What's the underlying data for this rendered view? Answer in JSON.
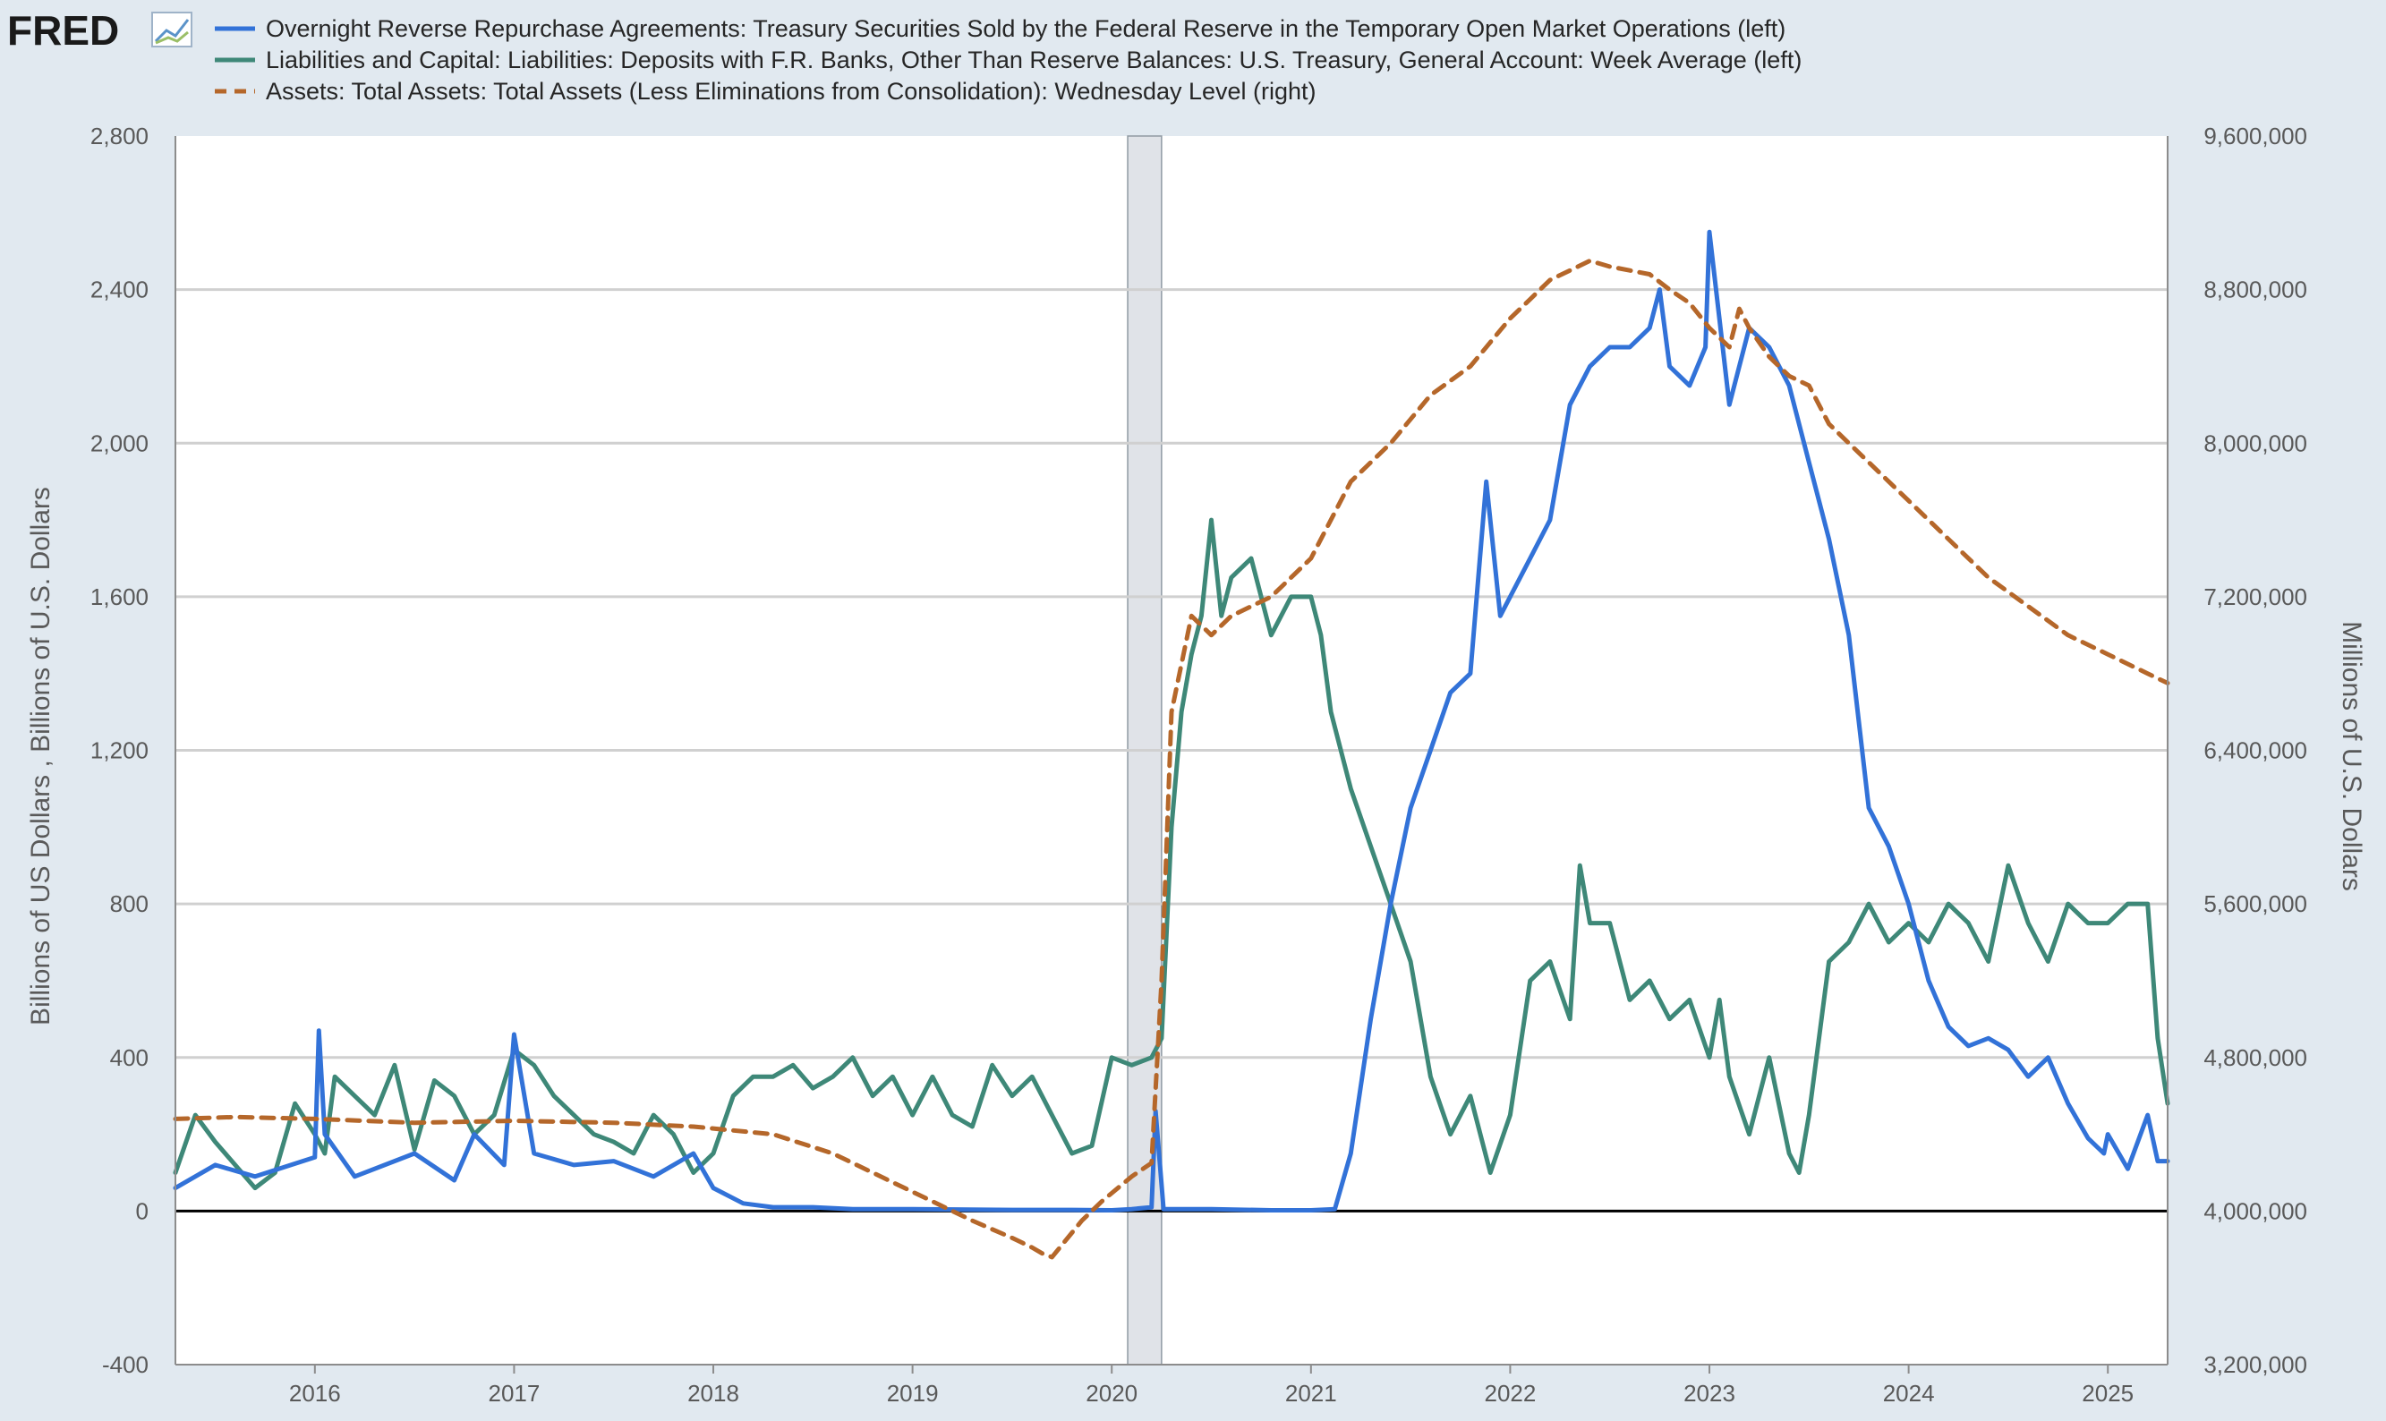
{
  "header": {
    "logo_text": "FRED",
    "logo_icon": "line-chart-icon"
  },
  "chart_data": {
    "type": "line",
    "legend": [
      {
        "label": "Overnight Reverse Repurchase Agreements: Treasury Securities Sold by the Federal Reserve in the Temporary Open Market Operations (left)",
        "color": "#3272d8",
        "style": "solid"
      },
      {
        "label": "Liabilities and Capital: Liabilities: Deposits with F.R. Banks, Other Than Reserve Balances: U.S. Treasury, General Account: Week Average (left)",
        "color": "#3e8878",
        "style": "solid"
      },
      {
        "label": "Assets: Total Assets: Total Assets (Less Eliminations from Consolidation): Wednesday Level (right)",
        "color": "#b5672a",
        "style": "dashed"
      }
    ],
    "legend_placement": "top-left",
    "y_left": {
      "label": "Billions of US Dollars , Billions of U.S. Dollars",
      "range": [
        -400,
        2800
      ],
      "ticks": [
        -400,
        0,
        400,
        800,
        1200,
        1600,
        2000,
        2400,
        2800
      ],
      "tick_labels": [
        "-400",
        "0",
        "400",
        "800",
        "1,200",
        "1,600",
        "2,000",
        "2,400",
        "2,800"
      ]
    },
    "y_right": {
      "label": "Millions of U.S. Dollars",
      "range": [
        3200000,
        9600000
      ],
      "ticks": [
        3200000,
        4000000,
        4800000,
        5600000,
        6400000,
        7200000,
        8000000,
        8800000,
        9600000
      ],
      "tick_labels": [
        "3,200,000",
        "4,000,000",
        "4,800,000",
        "5,600,000",
        "6,400,000",
        "7,200,000",
        "8,000,000",
        "8,800,000",
        "9,600,000"
      ]
    },
    "x_axis": {
      "range": [
        2015.3,
        2025.3
      ],
      "ticks": [
        2016,
        2017,
        2018,
        2019,
        2020,
        2021,
        2022,
        2023,
        2024,
        2025
      ],
      "tick_labels": [
        "2016",
        "2017",
        "2018",
        "2019",
        "2020",
        "2021",
        "2022",
        "2023",
        "2024",
        "2025"
      ]
    },
    "grid": "horizontal",
    "recession_shading": [
      [
        2020.08,
        2020.25
      ]
    ],
    "series": [
      {
        "name": "Overnight Reverse Repurchase Agreements",
        "axis": "left",
        "x": [
          2015.3,
          2015.5,
          2015.7,
          2016.0,
          2016.02,
          2016.05,
          2016.2,
          2016.5,
          2016.7,
          2016.8,
          2016.95,
          2017.0,
          2017.1,
          2017.3,
          2017.5,
          2017.7,
          2017.9,
          2018.0,
          2018.15,
          2018.3,
          2018.5,
          2018.7,
          2019.0,
          2019.5,
          2019.8,
          2020.0,
          2020.1,
          2020.2,
          2020.22,
          2020.26,
          2020.5,
          2020.8,
          2021.0,
          2021.12,
          2021.2,
          2021.3,
          2021.4,
          2021.5,
          2021.6,
          2021.7,
          2021.8,
          2021.88,
          2021.95,
          2022.0,
          2022.1,
          2022.2,
          2022.3,
          2022.4,
          2022.5,
          2022.6,
          2022.7,
          2022.75,
          2022.8,
          2022.9,
          2022.98,
          2023.0,
          2023.1,
          2023.2,
          2023.3,
          2023.4,
          2023.5,
          2023.6,
          2023.7,
          2023.8,
          2023.9,
          2024.0,
          2024.1,
          2024.2,
          2024.3,
          2024.4,
          2024.5,
          2024.6,
          2024.7,
          2024.8,
          2024.9,
          2024.98,
          2025.0,
          2025.1,
          2025.2,
          2025.25,
          2025.3
        ],
        "y": [
          60,
          120,
          90,
          140,
          470,
          200,
          90,
          150,
          80,
          200,
          120,
          460,
          150,
          120,
          130,
          90,
          150,
          60,
          20,
          10,
          10,
          5,
          5,
          3,
          3,
          2,
          5,
          10,
          260,
          5,
          5,
          2,
          2,
          5,
          150,
          500,
          800,
          1050,
          1200,
          1350,
          1400,
          1900,
          1550,
          1600,
          1700,
          1800,
          2100,
          2200,
          2250,
          2250,
          2300,
          2400,
          2200,
          2150,
          2250,
          2550,
          2100,
          2300,
          2250,
          2150,
          1950,
          1750,
          1500,
          1050,
          950,
          800,
          600,
          480,
          430,
          450,
          420,
          350,
          400,
          280,
          190,
          150,
          200,
          110,
          250,
          130,
          130
        ]
      },
      {
        "name": "U.S. Treasury, General Account",
        "axis": "left",
        "x": [
          2015.3,
          2015.4,
          2015.5,
          2015.6,
          2015.7,
          2015.8,
          2015.9,
          2016.0,
          2016.05,
          2016.1,
          2016.2,
          2016.3,
          2016.4,
          2016.5,
          2016.6,
          2016.7,
          2016.8,
          2016.9,
          2017.0,
          2017.1,
          2017.2,
          2017.3,
          2017.4,
          2017.5,
          2017.6,
          2017.7,
          2017.8,
          2017.9,
          2018.0,
          2018.1,
          2018.2,
          2018.3,
          2018.4,
          2018.5,
          2018.6,
          2018.7,
          2018.8,
          2018.9,
          2019.0,
          2019.1,
          2019.2,
          2019.3,
          2019.4,
          2019.5,
          2019.6,
          2019.7,
          2019.8,
          2019.9,
          2020.0,
          2020.1,
          2020.2,
          2020.25,
          2020.3,
          2020.35,
          2020.4,
          2020.45,
          2020.5,
          2020.55,
          2020.6,
          2020.7,
          2020.8,
          2020.9,
          2021.0,
          2021.05,
          2021.1,
          2021.2,
          2021.3,
          2021.4,
          2021.5,
          2021.6,
          2021.7,
          2021.8,
          2021.9,
          2022.0,
          2022.1,
          2022.2,
          2022.3,
          2022.35,
          2022.4,
          2022.5,
          2022.6,
          2022.7,
          2022.8,
          2022.9,
          2023.0,
          2023.05,
          2023.1,
          2023.2,
          2023.3,
          2023.4,
          2023.45,
          2023.5,
          2023.6,
          2023.7,
          2023.8,
          2023.9,
          2024.0,
          2024.1,
          2024.2,
          2024.3,
          2024.4,
          2024.5,
          2024.6,
          2024.7,
          2024.8,
          2024.9,
          2025.0,
          2025.1,
          2025.2,
          2025.25,
          2025.3
        ],
        "y": [
          100,
          250,
          180,
          120,
          60,
          100,
          280,
          200,
          150,
          350,
          300,
          250,
          380,
          160,
          340,
          300,
          200,
          250,
          420,
          380,
          300,
          250,
          200,
          180,
          150,
          250,
          200,
          100,
          150,
          300,
          350,
          350,
          380,
          320,
          350,
          400,
          300,
          350,
          250,
          350,
          250,
          220,
          380,
          300,
          350,
          250,
          150,
          170,
          400,
          380,
          400,
          450,
          1000,
          1300,
          1450,
          1550,
          1800,
          1550,
          1650,
          1700,
          1500,
          1600,
          1600,
          1500,
          1300,
          1100,
          950,
          800,
          650,
          350,
          200,
          300,
          100,
          250,
          600,
          650,
          500,
          900,
          750,
          750,
          550,
          600,
          500,
          550,
          400,
          550,
          350,
          200,
          400,
          150,
          100,
          250,
          650,
          700,
          800,
          700,
          750,
          700,
          800,
          750,
          650,
          900,
          750,
          650,
          800,
          750,
          750,
          800,
          800,
          450,
          280
        ]
      },
      {
        "name": "Total Assets",
        "axis": "right",
        "x": [
          2015.3,
          2015.6,
          2016.0,
          2016.5,
          2017.0,
          2017.5,
          2017.9,
          2018.3,
          2018.6,
          2018.9,
          2019.1,
          2019.3,
          2019.5,
          2019.6,
          2019.65,
          2019.7,
          2019.85,
          2019.95,
          2020.1,
          2020.2,
          2020.25,
          2020.3,
          2020.4,
          2020.5,
          2020.6,
          2020.8,
          2021.0,
          2021.2,
          2021.4,
          2021.6,
          2021.8,
          2022.0,
          2022.1,
          2022.2,
          2022.3,
          2022.4,
          2022.5,
          2022.6,
          2022.7,
          2022.8,
          2022.9,
          2023.0,
          2023.1,
          2023.15,
          2023.2,
          2023.3,
          2023.4,
          2023.5,
          2023.6,
          2023.7,
          2023.8,
          2023.9,
          2024.0,
          2024.2,
          2024.4,
          2024.6,
          2024.8,
          2025.0,
          2025.2,
          2025.3
        ],
        "y": [
          4480000,
          4490000,
          4480000,
          4460000,
          4470000,
          4460000,
          4440000,
          4400000,
          4300000,
          4150000,
          4050000,
          3950000,
          3860000,
          3810000,
          3780000,
          3760000,
          3950000,
          4050000,
          4180000,
          4250000,
          5200000,
          6600000,
          7100000,
          7000000,
          7100000,
          7200000,
          7400000,
          7800000,
          8000000,
          8250000,
          8400000,
          8650000,
          8750000,
          8850000,
          8900000,
          8950000,
          8920000,
          8900000,
          8880000,
          8800000,
          8730000,
          8600000,
          8500000,
          8700000,
          8600000,
          8450000,
          8350000,
          8300000,
          8100000,
          8000000,
          7900000,
          7800000,
          7700000,
          7500000,
          7300000,
          7150000,
          7000000,
          6900000,
          6800000,
          6750000
        ]
      }
    ]
  }
}
